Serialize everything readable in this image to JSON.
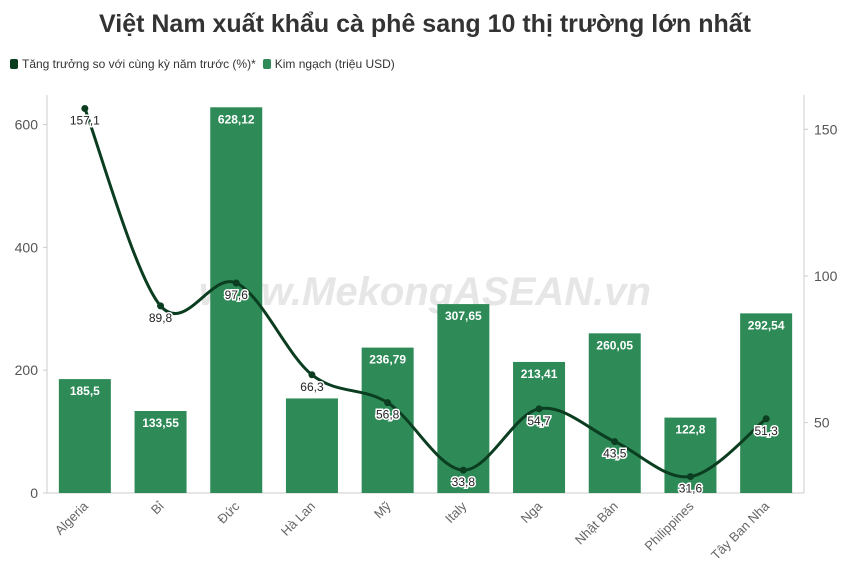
{
  "chart_data": {
    "type": "bar",
    "title": "Việt Nam xuất khẩu cà phê sang 10 thị trường lớn nhất",
    "categories": [
      "Algeria",
      "Bỉ",
      "Đức",
      "Hà Lan",
      "Mỹ",
      "Italy",
      "Nga",
      "Nhật Bản",
      "Philippines",
      "Tây Ban Nha"
    ],
    "series": [
      {
        "name": "Kim ngạch (triệu USD)",
        "type": "bar",
        "axis": "left",
        "color": "#2e8b57",
        "values": [
          185.5,
          133.55,
          628.12,
          154,
          236.79,
          307.65,
          213.41,
          260.05,
          122.8,
          292.54
        ],
        "labels": [
          "185,5",
          "133,55",
          "628,12",
          "",
          "236,79",
          "307,65",
          "213,41",
          "260,05",
          "122,8",
          "292,54"
        ]
      },
      {
        "name": "Tăng trưởng so với cùng kỳ năm trước (%)*",
        "type": "line",
        "axis": "right",
        "color": "#0b3d20",
        "values": [
          157.1,
          89.8,
          97.6,
          66.3,
          56.8,
          33.8,
          54.7,
          43.5,
          31.6,
          51.3
        ],
        "labels": [
          "157,1",
          "89,8",
          "97,6",
          "66,3",
          "56,8",
          "33,8",
          "54,7",
          "43,5",
          "31,6",
          "51,3"
        ]
      }
    ],
    "y_left": {
      "ticks": [
        "0",
        "200",
        "400",
        "600"
      ],
      "lim": [
        0,
        640
      ]
    },
    "y_right": {
      "ticks": [
        "50",
        "100",
        "150"
      ],
      "lim": [
        26,
        160
      ]
    },
    "grid": false,
    "legend_position": "top-left",
    "watermark": "www.MekongASEAN.vn"
  }
}
